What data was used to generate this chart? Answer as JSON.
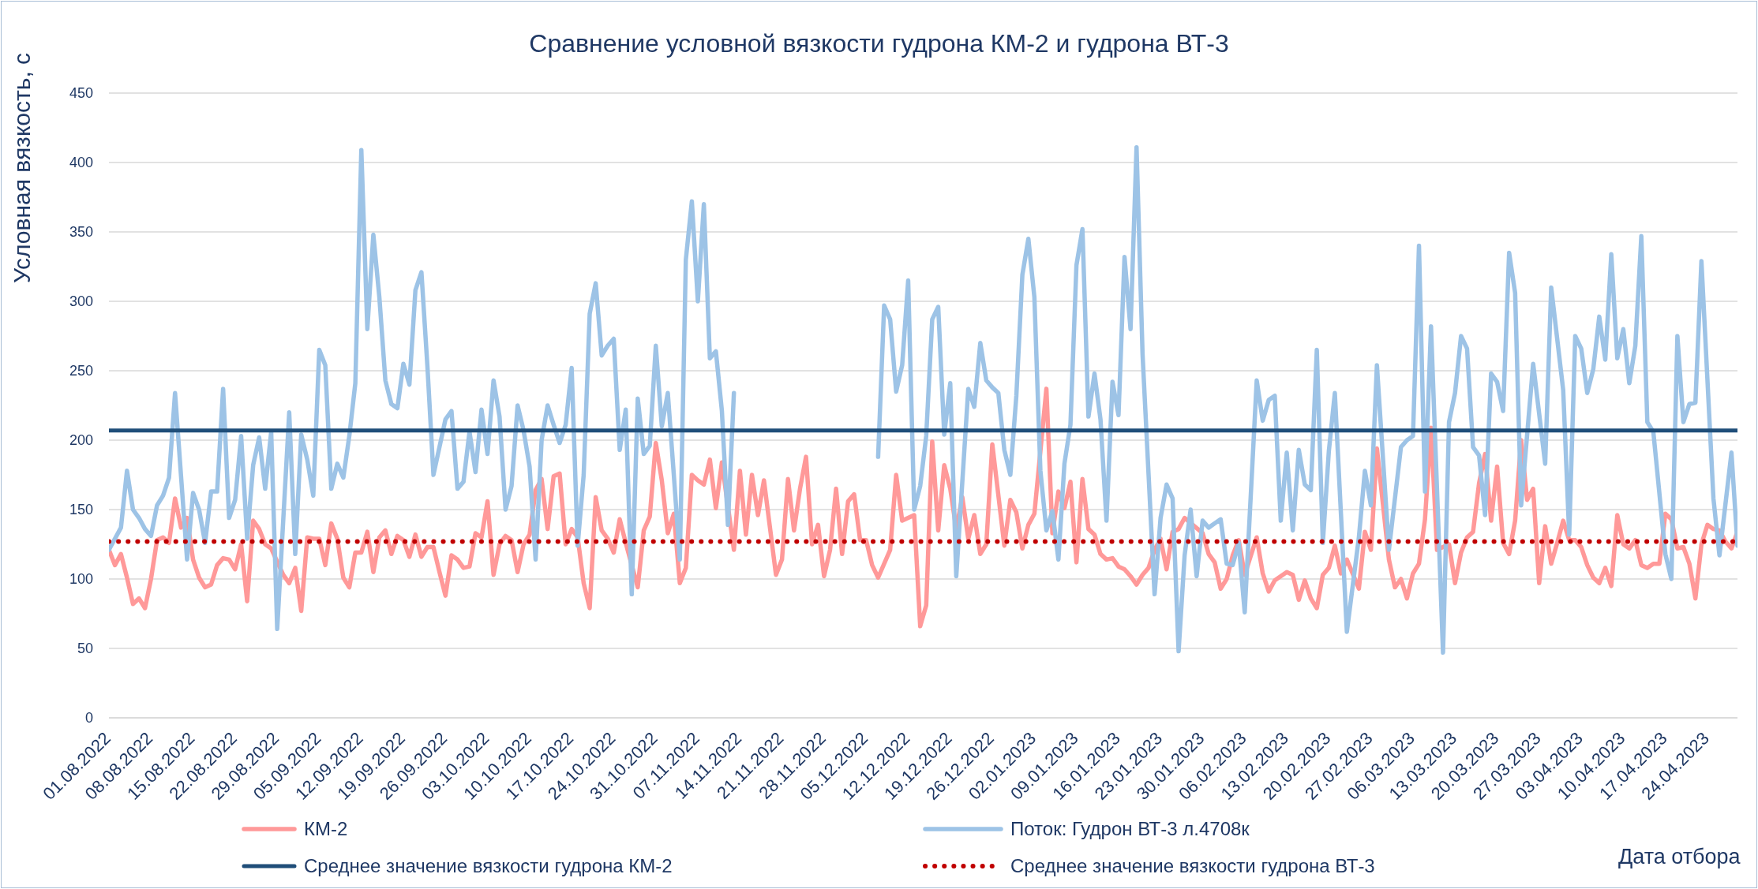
{
  "chart_data": {
    "type": "line",
    "title": "Сравнение условной вязкости гудрона КМ-2 и гудрона ВТ-3",
    "xlabel": "Дата отбора",
    "ylabel": "Условная вязкость, с",
    "series": [
      {
        "name": "КМ-2",
        "color": "#ff9999",
        "x": [
          "2022-08-01",
          "2022-08-02",
          "2022-08-03",
          "2022-08-04",
          "2022-08-05",
          "2022-08-06",
          "2022-08-07",
          "2022-08-08",
          "2022-08-09",
          "2022-08-10",
          "2022-08-11",
          "2022-08-12",
          "2022-08-13",
          "2022-08-14",
          "2022-08-15",
          "2022-08-16",
          "2022-08-17",
          "2022-08-18",
          "2022-08-19",
          "2022-08-20",
          "2022-08-21",
          "2022-08-22",
          "2022-08-23",
          "2022-08-24",
          "2022-08-25",
          "2022-08-26",
          "2022-08-27",
          "2022-08-28",
          "2022-08-30",
          "2022-08-31",
          "2022-09-01",
          "2022-09-02",
          "2022-09-03",
          "2022-09-04",
          "2022-09-05",
          "2022-09-06",
          "2022-09-07",
          "2022-09-08",
          "2022-09-09",
          "2022-09-10",
          "2022-09-11",
          "2022-09-12",
          "2022-09-13",
          "2022-09-14",
          "2022-09-15",
          "2022-09-16",
          "2022-09-17",
          "2022-09-18",
          "2022-09-19",
          "2022-09-20",
          "2022-09-21",
          "2022-09-22",
          "2022-09-23",
          "2022-09-24",
          "2022-09-25",
          "2022-09-26",
          "2022-09-27",
          "2022-09-28",
          "2022-09-29",
          "2022-09-30",
          "2022-10-01",
          "2022-10-02",
          "2022-10-03",
          "2022-10-04",
          "2022-10-05",
          "2022-10-06",
          "2022-10-07",
          "2022-10-08",
          "2022-10-09",
          "2022-10-10",
          "2022-10-11",
          "2022-10-12",
          "2022-10-13",
          "2022-10-14",
          "2022-10-15",
          "2022-10-16",
          "2022-10-17",
          "2022-10-18",
          "2022-10-19",
          "2022-10-20",
          "2022-10-21",
          "2022-10-22",
          "2022-10-23",
          "2022-10-24",
          "2022-10-25",
          "2022-10-26",
          "2022-10-28",
          "2022-10-29",
          "2022-10-30",
          "2022-10-31",
          "2022-11-01",
          "2022-11-02",
          "2022-11-03",
          "2022-11-04",
          "2022-11-05",
          "2022-11-06",
          "2022-11-07",
          "2022-11-08",
          "2022-11-09",
          "2022-11-10",
          "2022-11-11",
          "2022-11-13",
          "2022-11-14",
          "2022-11-15",
          "2022-11-16",
          "2022-11-17",
          "2022-11-18",
          "2022-11-20",
          "2022-11-21",
          "2022-11-22",
          "2022-11-23",
          "2022-11-24",
          "2022-11-25",
          "2022-11-26",
          "2022-11-27",
          "2022-11-28",
          "2022-11-29",
          "2022-11-30",
          "2022-12-01",
          "2022-12-02",
          "2022-12-03",
          "2022-12-04",
          "2022-12-05",
          "2022-12-06",
          "2022-12-07",
          "2022-12-09",
          "2022-12-10",
          "2022-12-11",
          "2022-12-12",
          "2022-12-13",
          "2022-12-14",
          "2022-12-15",
          "2022-12-16",
          "2022-12-17",
          "2022-12-18",
          "2022-12-19",
          "2022-12-20",
          "2022-12-21",
          "2022-12-22",
          "2022-12-23",
          "2022-12-24",
          "2022-12-25",
          "2022-12-26",
          "2022-12-28",
          "2022-12-29",
          "2022-12-30",
          "2022-12-31",
          "2023-01-01",
          "2023-01-02",
          "2023-01-04",
          "2023-01-05",
          "2023-01-06",
          "2023-01-07",
          "2023-01-08",
          "2023-01-09",
          "2023-01-10",
          "2023-01-11",
          "2023-01-12",
          "2023-01-13",
          "2023-01-14",
          "2023-01-15",
          "2023-01-16",
          "2023-01-17",
          "2023-01-18",
          "2023-01-19",
          "2023-01-20",
          "2023-01-21",
          "2023-01-22",
          "2023-01-23",
          "2023-01-24",
          "2023-01-25",
          "2023-01-26",
          "2023-01-27",
          "2023-01-30",
          "2023-01-31",
          "2023-02-01",
          "2023-02-02",
          "2023-02-03",
          "2023-02-04",
          "2023-02-05",
          "2023-02-06",
          "2023-02-08",
          "2023-02-09",
          "2023-02-10",
          "2023-02-11",
          "2023-02-12",
          "2023-02-13",
          "2023-02-14",
          "2023-02-15",
          "2023-02-16",
          "2023-02-17",
          "2023-02-18",
          "2023-02-19",
          "2023-02-20",
          "2023-02-21",
          "2023-02-22",
          "2023-02-23",
          "2023-02-25",
          "2023-02-26",
          "2023-02-27",
          "2023-02-28",
          "2023-03-02",
          "2023-03-03",
          "2023-03-04",
          "2023-03-05",
          "2023-03-06",
          "2023-03-07",
          "2023-03-08",
          "2023-03-09",
          "2023-03-10",
          "2023-03-12",
          "2023-03-13",
          "2023-03-14",
          "2023-03-15",
          "2023-03-16",
          "2023-03-17",
          "2023-03-18",
          "2023-03-19",
          "2023-03-20",
          "2023-03-21",
          "2023-03-22",
          "2023-03-23",
          "2023-03-24",
          "2023-03-25",
          "2023-03-26",
          "2023-03-27",
          "2023-03-28",
          "2023-03-29",
          "2023-03-30",
          "2023-03-31",
          "2023-04-01",
          "2023-04-02",
          "2023-04-03",
          "2023-04-04",
          "2023-04-05",
          "2023-04-06",
          "2023-04-07",
          "2023-04-08",
          "2023-04-09",
          "2023-04-10",
          "2023-04-11",
          "2023-04-12",
          "2023-04-13",
          "2023-04-14",
          "2023-04-15",
          "2023-04-16",
          "2023-04-17",
          "2023-04-18",
          "2023-04-19",
          "2023-04-20",
          "2023-04-21",
          "2023-04-22",
          "2023-04-23",
          "2023-04-24",
          "2023-04-25",
          "2023-04-26",
          "2023-04-27",
          "2023-04-28",
          "2023-04-29"
        ],
        "values": [
          121,
          110,
          118,
          101,
          82,
          86,
          79,
          100,
          128,
          130,
          126,
          158,
          137,
          144,
          114,
          101,
          94,
          96,
          110,
          115,
          114,
          107,
          125,
          84,
          142,
          136,
          125,
          122,
          103,
          97,
          108,
          77,
          130,
          129,
          129,
          110,
          140,
          129,
          101,
          94,
          119,
          119,
          134,
          105,
          130,
          135,
          118,
          131,
          128,
          116,
          132,
          116,
          123,
          123,
          105,
          88,
          117,
          114,
          108,
          109,
          133,
          130,
          156,
          103,
          125,
          131,
          128,
          105,
          125,
          132,
          164,
          172,
          136,
          174,
          176,
          125,
          136,
          130,
          97,
          79,
          159,
          135,
          129,
          119,
          143,
          126,
          94,
          135,
          145,
          198,
          171,
          133,
          147,
          97,
          108,
          175,
          171,
          168,
          186,
          151,
          184,
          121,
          178,
          132,
          175,
          146,
          171,
          103,
          114,
          172,
          135,
          165,
          188,
          125,
          139,
          102,
          121,
          165,
          118,
          156,
          161,
          128,
          128,
          110,
          101,
          121,
          175,
          142,
          144,
          146,
          66,
          81,
          199,
          135,
          182,
          165,
          136,
          159,
          129,
          146,
          118,
          125,
          197,
          124,
          157,
          148,
          122,
          139,
          147,
          237,
          133,
          163,
          151,
          170,
          112,
          172,
          136,
          132,
          118,
          114,
          115,
          109,
          107,
          102,
          96,
          103,
          108,
          121,
          129,
          107,
          134,
          136,
          144,
          133,
          118,
          112,
          93,
          100,
          117,
          128,
          103,
          130,
          104,
          91,
          99,
          102,
          105,
          103,
          85,
          99,
          86,
          79,
          103,
          108,
          124,
          104,
          114,
          93,
          134,
          121,
          194,
          114,
          94,
          100,
          86,
          104,
          111,
          143,
          209,
          121,
          125,
          97,
          119,
          130,
          134,
          169,
          190,
          142,
          181,
          126,
          118,
          142,
          200,
          157,
          165,
          97,
          138,
          111,
          126,
          142,
          128,
          128,
          123,
          110,
          101,
          97,
          108,
          95,
          146,
          125,
          122,
          128,
          110,
          108,
          111,
          111,
          147,
          143,
          122,
          123,
          111,
          86,
          125,
          139,
          136,
          135,
          127,
          122,
          134
        ]
      },
      {
        "name": "Поток: Гудрон ВТ-3 л.4708к",
        "color": "#9dc3e6",
        "x": [
          "2022-08-01",
          "2022-08-03",
          "2022-08-04",
          "2022-08-05",
          "2022-08-06",
          "2022-08-07",
          "2022-08-08",
          "2022-08-09",
          "2022-08-10",
          "2022-08-11",
          "2022-08-12",
          "2022-08-14",
          "2022-08-15",
          "2022-08-16",
          "2022-08-17",
          "2022-08-18",
          "2022-08-19",
          "2022-08-20",
          "2022-08-21",
          "2022-08-22",
          "2022-08-23",
          "2022-08-24",
          "2022-08-25",
          "2022-08-26",
          "2022-08-27",
          "2022-08-28",
          "2022-08-29",
          "2022-08-31",
          "2022-09-01",
          "2022-09-02",
          "2022-09-03",
          "2022-09-04",
          "2022-09-05",
          "2022-09-06",
          "2022-09-07",
          "2022-09-08",
          "2022-09-09",
          "2022-09-10",
          "2022-09-11",
          "2022-09-12",
          "2022-09-13",
          "2022-09-14",
          "2022-09-15",
          "2022-09-16",
          "2022-09-17",
          "2022-09-18",
          "2022-09-19",
          "2022-09-20",
          "2022-09-21",
          "2022-09-22",
          "2022-09-23",
          "2022-09-24",
          "2022-09-26",
          "2022-09-27",
          "2022-09-28",
          "2022-09-29",
          "2022-09-30",
          "2022-10-01",
          "2022-10-02",
          "2022-10-03",
          "2022-10-04",
          "2022-10-05",
          "2022-10-06",
          "2022-10-07",
          "2022-10-08",
          "2022-10-09",
          "2022-10-10",
          "2022-10-11",
          "2022-10-12",
          "2022-10-13",
          "2022-10-14",
          "2022-10-15",
          "2022-10-16",
          "2022-10-17",
          "2022-10-18",
          "2022-10-19",
          "2022-10-20",
          "2022-10-21",
          "2022-10-22",
          "2022-10-23",
          "2022-10-24",
          "2022-10-25",
          "2022-10-26",
          "2022-10-27",
          "2022-10-28",
          "2022-10-29",
          "2022-10-30",
          "2022-10-31",
          "2022-11-01",
          "2022-11-02",
          "2022-11-03",
          "2022-11-04",
          "2022-11-05",
          "2022-11-06",
          "2022-11-07",
          "2022-11-08",
          "2022-11-09",
          "2022-11-10",
          "2022-11-11",
          "2022-11-12",
          "2022-11-13",
          "2022-11-14",
          "2022-12-07",
          "2022-12-08",
          "2022-12-09",
          "2022-12-10",
          "2022-12-11",
          "2022-12-12",
          "2022-12-13",
          "2022-12-14",
          "2022-12-15",
          "2022-12-16",
          "2022-12-17",
          "2022-12-18",
          "2022-12-19",
          "2022-12-20",
          "2022-12-22",
          "2022-12-23",
          "2022-12-24",
          "2022-12-25",
          "2022-12-26",
          "2022-12-27",
          "2022-12-28",
          "2022-12-29",
          "2022-12-30",
          "2022-12-31",
          "2023-01-01",
          "2023-01-02",
          "2023-01-03",
          "2023-01-04",
          "2023-01-05",
          "2023-01-06",
          "2023-01-07",
          "2023-01-08",
          "2023-01-09",
          "2023-01-10",
          "2023-01-11",
          "2023-01-12",
          "2023-01-13",
          "2023-01-14",
          "2023-01-15",
          "2023-01-16",
          "2023-01-17",
          "2023-01-18",
          "2023-01-19",
          "2023-01-20",
          "2023-01-22",
          "2023-01-23",
          "2023-01-24",
          "2023-01-25",
          "2023-01-26",
          "2023-01-27",
          "2023-01-28",
          "2023-01-29",
          "2023-01-30",
          "2023-01-31",
          "2023-02-01",
          "2023-02-02",
          "2023-02-03",
          "2023-02-04",
          "2023-02-05",
          "2023-02-06",
          "2023-02-08",
          "2023-02-09",
          "2023-02-10",
          "2023-02-11",
          "2023-02-12",
          "2023-02-13",
          "2023-02-14",
          "2023-02-15",
          "2023-02-16",
          "2023-02-17",
          "2023-02-18",
          "2023-02-19",
          "2023-02-20",
          "2023-02-21",
          "2023-02-23",
          "2023-02-25",
          "2023-02-26",
          "2023-02-27",
          "2023-02-28",
          "2023-03-02",
          "2023-03-04",
          "2023-03-05",
          "2023-03-06",
          "2023-03-07",
          "2023-03-08",
          "2023-03-09",
          "2023-03-11",
          "2023-03-12",
          "2023-03-13",
          "2023-03-14",
          "2023-03-15",
          "2023-03-16",
          "2023-03-17",
          "2023-03-18",
          "2023-03-19",
          "2023-03-20",
          "2023-03-21",
          "2023-03-22",
          "2023-03-23",
          "2023-03-24",
          "2023-03-26",
          "2023-03-28",
          "2023-03-29",
          "2023-03-31",
          "2023-04-01",
          "2023-04-02",
          "2023-04-03",
          "2023-04-04",
          "2023-04-05",
          "2023-04-06",
          "2023-04-07",
          "2023-04-08",
          "2023-04-09",
          "2023-04-10",
          "2023-04-11",
          "2023-04-12",
          "2023-04-13",
          "2023-04-14",
          "2023-04-15",
          "2023-04-17",
          "2023-04-18",
          "2023-04-19",
          "2023-04-20",
          "2023-04-21",
          "2023-04-22",
          "2023-04-23",
          "2023-04-25",
          "2023-04-26",
          "2023-04-28",
          "2023-04-29"
        ],
        "values": [
          121,
          137,
          178,
          150,
          144,
          136,
          131,
          153,
          160,
          173,
          234,
          114,
          162,
          150,
          126,
          163,
          163,
          237,
          144,
          157,
          203,
          129,
          182,
          202,
          165,
          206,
          64,
          220,
          118,
          204,
          186,
          160,
          265,
          254,
          165,
          183,
          173,
          203,
          241,
          409,
          280,
          348,
          303,
          243,
          226,
          223,
          255,
          240,
          308,
          321,
          253,
          175,
          215,
          221,
          165,
          170,
          206,
          177,
          222,
          190,
          243,
          217,
          150,
          167,
          225,
          207,
          181,
          114,
          200,
          225,
          211,
          198,
          211,
          252,
          124,
          175,
          291,
          313,
          261,
          268,
          273,
          193,
          222,
          89,
          230,
          190,
          196,
          268,
          210,
          234,
          175,
          114,
          330,
          372,
          300,
          370,
          259,
          264,
          221,
          139,
          234,
          null,
          188,
          297,
          287,
          235,
          254,
          315,
          150,
          167,
          203,
          287,
          296,
          204,
          241,
          102,
          237,
          224,
          270,
          243,
          238,
          234,
          193,
          175,
          232,
          319,
          345,
          303,
          178,
          135,
          149,
          114,
          183,
          211,
          326,
          352,
          217,
          248,
          215,
          142,
          242,
          218,
          332,
          280,
          411,
          262,
          89,
          144,
          168,
          158,
          48,
          117,
          150,
          102,
          142,
          137,
          140,
          143,
          111,
          110,
          126,
          76,
          243,
          214,
          229,
          232,
          142,
          191,
          135,
          193,
          168,
          164,
          265,
          126,
          192,
          234,
          62,
          130,
          178,
          153,
          254,
          121,
          195,
          200,
          203,
          340,
          163,
          282,
          47,
          213,
          234,
          275,
          266,
          195,
          189,
          146,
          248,
          242,
          221,
          335,
          306,
          153,
          255,
          183,
          310,
          236,
          132,
          275,
          266,
          234,
          251,
          289,
          258,
          334,
          259,
          280,
          241,
          268,
          347,
          213,
          206,
          118,
          100,
          275,
          213,
          226,
          227,
          329,
          158,
          117,
          191,
          124
        ]
      }
    ],
    "ref_lines": [
      {
        "axis": "y",
        "value": 207,
        "label": "Среднее значение вязкости гудрона КМ-2",
        "color": "#1f4e79",
        "line_style": "solid"
      },
      {
        "axis": "y",
        "value": 127,
        "label": "Среднее значение вязкости гудрона ВТ-3",
        "color": "#c00000",
        "line_style": "dotted"
      }
    ],
    "xlim": [
      "2022-08-01",
      "2023-04-29"
    ],
    "xticks": [
      {
        "value": "2022-08-01",
        "label": "01.08.2022"
      },
      {
        "value": "2022-08-08",
        "label": "08.08.2022"
      },
      {
        "value": "2022-08-15",
        "label": "15.08.2022"
      },
      {
        "value": "2022-08-22",
        "label": "22.08.2022"
      },
      {
        "value": "2022-08-29",
        "label": "29.08.2022"
      },
      {
        "value": "2022-09-05",
        "label": "05.09.2022"
      },
      {
        "value": "2022-09-12",
        "label": "12.09.2022"
      },
      {
        "value": "2022-09-19",
        "label": "19.09.2022"
      },
      {
        "value": "2022-09-26",
        "label": "26.09.2022"
      },
      {
        "value": "2022-10-03",
        "label": "03.10.2022"
      },
      {
        "value": "2022-10-10",
        "label": "10.10.2022"
      },
      {
        "value": "2022-10-17",
        "label": "17.10.2022"
      },
      {
        "value": "2022-10-24",
        "label": "24.10.2022"
      },
      {
        "value": "2022-10-31",
        "label": "31.10.2022"
      },
      {
        "value": "2022-11-07",
        "label": "07.11.2022"
      },
      {
        "value": "2022-11-14",
        "label": "14.11.2022"
      },
      {
        "value": "2022-11-21",
        "label": "21.11.2022"
      },
      {
        "value": "2022-11-28",
        "label": "28.11.2022"
      },
      {
        "value": "2022-12-05",
        "label": "05.12.2022"
      },
      {
        "value": "2022-12-12",
        "label": "12.12.2022"
      },
      {
        "value": "2022-12-19",
        "label": "19.12.2022"
      },
      {
        "value": "2022-12-26",
        "label": "26.12.2022"
      },
      {
        "value": "2023-01-02",
        "label": "02.01.2023"
      },
      {
        "value": "2023-01-09",
        "label": "09.01.2023"
      },
      {
        "value": "2023-01-16",
        "label": "16.01.2023"
      },
      {
        "value": "2023-01-23",
        "label": "23.01.2023"
      },
      {
        "value": "2023-01-30",
        "label": "30.01.2023"
      },
      {
        "value": "2023-02-06",
        "label": "06.02.2023"
      },
      {
        "value": "2023-02-13",
        "label": "13.02.2023"
      },
      {
        "value": "2023-02-20",
        "label": "20.02.2023"
      },
      {
        "value": "2023-02-27",
        "label": "27.02.2023"
      },
      {
        "value": "2023-03-06",
        "label": "06.03.2023"
      },
      {
        "value": "2023-03-13",
        "label": "13.03.2023"
      },
      {
        "value": "2023-03-20",
        "label": "20.03.2023"
      },
      {
        "value": "2023-03-27",
        "label": "27.03.2023"
      },
      {
        "value": "2023-04-03",
        "label": "03.04.2023"
      },
      {
        "value": "2023-04-10",
        "label": "10.04.2023"
      },
      {
        "value": "2023-04-17",
        "label": "17.04.2023"
      },
      {
        "value": "2023-04-24",
        "label": "24.04.2023"
      }
    ],
    "ylim": [
      0,
      450
    ],
    "yticks": [
      0,
      50,
      100,
      150,
      200,
      250,
      300,
      350,
      400,
      450
    ],
    "grid": "y",
    "legend": "bottom",
    "marker": "none"
  }
}
